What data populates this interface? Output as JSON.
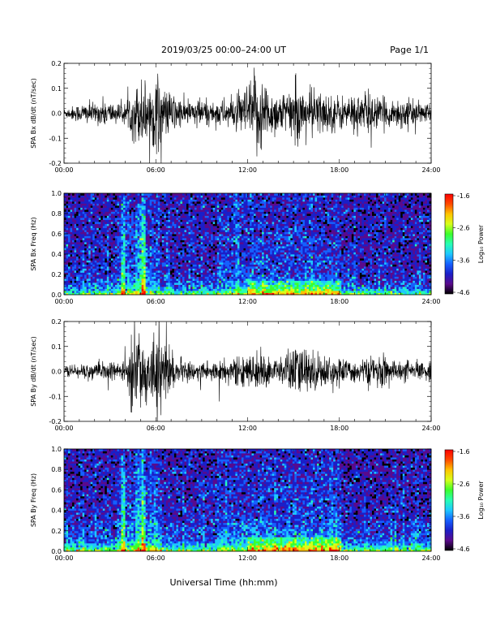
{
  "header": {
    "title": "2019/03/25  00:00–24:00 UT",
    "page": "Page 1/1"
  },
  "xlabel": "Universal Time (hh:mm)",
  "colors": {
    "trace": "#000000",
    "background": "#ffffff"
  },
  "colorbar": {
    "label": "Log₁₀ Power",
    "ticks": [
      "-1.6",
      "-2.6",
      "-3.6",
      "-4.6"
    ],
    "range": [
      -4.6,
      -1.6
    ],
    "stops": [
      "#000000",
      "#5a0a8c",
      "#1b1fc8",
      "#1560ff",
      "#1ec8ff",
      "#27ffb4",
      "#3cff2b",
      "#d8ff1a",
      "#ffc400",
      "#ff4a00",
      "#ff0000"
    ]
  },
  "chart_data": [
    {
      "type": "line",
      "ylabel": "SPA Bx dB/dt (nT/sec)",
      "x_ticks": [
        "00:00",
        "06:00",
        "12:00",
        "18:00",
        "24:00"
      ],
      "xlim_hours": [
        0,
        24
      ],
      "ylim": [
        -0.2,
        0.2
      ],
      "y_ticks": [
        "0.2",
        "0.1",
        "0.0",
        "-0.1",
        "-0.2"
      ],
      "series": [
        {
          "values": [
            0.02,
            0.03,
            0.04,
            0.05,
            0.04,
            0.06,
            0.05,
            0.04,
            0.05,
            0.12,
            0.15,
            0.14,
            0.17,
            0.1,
            0.09,
            0.06,
            0.05,
            0.07,
            0.06,
            0.05,
            0.06,
            0.06,
            0.07,
            0.1,
            0.15,
            0.2,
            0.12,
            0.1,
            0.09,
            0.11,
            0.12,
            0.1,
            0.12,
            0.09,
            0.08,
            0.08,
            0.07,
            0.08,
            0.09,
            0.1,
            0.07,
            0.06,
            0.06,
            0.07,
            0.06,
            0.05,
            0.04,
            0.05
          ]
        }
      ]
    },
    {
      "type": "heatmap",
      "ylabel": "SPA Bx Freq (Hz)",
      "x_ticks": [
        "00:00",
        "06:00",
        "12:00",
        "18:00",
        "24:00"
      ],
      "xlim_hours": [
        0,
        24
      ],
      "ylim": [
        0,
        1.0
      ],
      "y_ticks": [
        "1.0",
        "0.8",
        "0.6",
        "0.4",
        "0.2",
        "0.0"
      ],
      "z_range": [
        -4.6,
        -1.6
      ]
    },
    {
      "type": "line",
      "ylabel": "SPA By dB/dt (nT/sec)",
      "x_ticks": [
        "00:00",
        "06:00",
        "12:00",
        "18:00",
        "24:00"
      ],
      "xlim_hours": [
        0,
        24
      ],
      "ylim": [
        -0.2,
        0.2
      ],
      "y_ticks": [
        "0.2",
        "0.1",
        "0.0",
        "-0.1",
        "-0.2"
      ],
      "series": [
        {
          "values": [
            0.02,
            0.03,
            0.03,
            0.04,
            0.03,
            0.04,
            0.04,
            0.04,
            0.04,
            0.2,
            0.18,
            0.1,
            0.2,
            0.18,
            0.06,
            0.05,
            0.04,
            0.04,
            0.05,
            0.05,
            0.05,
            0.05,
            0.06,
            0.06,
            0.07,
            0.08,
            0.07,
            0.06,
            0.07,
            0.1,
            0.12,
            0.1,
            0.09,
            0.07,
            0.07,
            0.06,
            0.05,
            0.05,
            0.05,
            0.06,
            0.05,
            0.08,
            0.05,
            0.04,
            0.05,
            0.04,
            0.04,
            0.04
          ]
        }
      ]
    },
    {
      "type": "heatmap",
      "ylabel": "SPA By Freq (Hz)",
      "x_ticks": [
        "00:00",
        "06:00",
        "12:00",
        "18:00",
        "24:00"
      ],
      "xlim_hours": [
        0,
        24
      ],
      "ylim": [
        0,
        1.0
      ],
      "y_ticks": [
        "1.0",
        "0.8",
        "0.6",
        "0.4",
        "0.2",
        "0.0"
      ],
      "z_range": [
        -4.6,
        -1.6
      ]
    }
  ]
}
